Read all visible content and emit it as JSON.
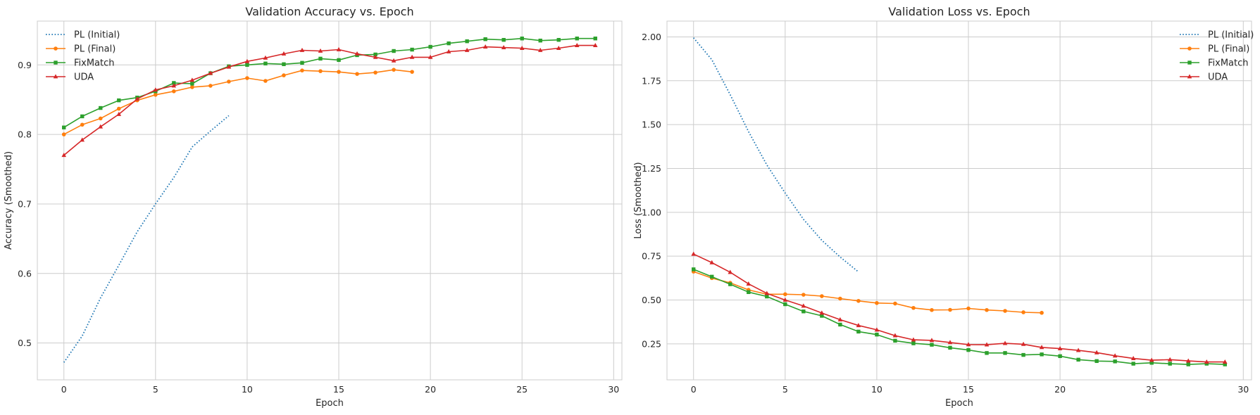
{
  "chart_data": [
    {
      "type": "line",
      "title": "Validation Accuracy vs. Epoch",
      "xlabel": "Epoch",
      "ylabel": "Accuracy (Smoothed)",
      "xlim": [
        -1.45,
        30.45
      ],
      "ylim": [
        0.447,
        0.963
      ],
      "xticks": [
        0,
        5,
        10,
        15,
        20,
        25,
        30
      ],
      "yticks": [
        0.5,
        0.6,
        0.7,
        0.8,
        0.9
      ],
      "ytick_labels": [
        "0.5",
        "0.6",
        "0.7",
        "0.8",
        "0.9"
      ],
      "grid": true,
      "legend": "top-left",
      "series": [
        {
          "name": "PL (Initial)",
          "color": "#1f77b4",
          "style": "dotted",
          "marker": "none",
          "x": [
            0,
            1,
            2,
            3,
            4,
            5,
            6,
            7,
            8,
            9
          ],
          "y": [
            0.472,
            0.51,
            0.565,
            0.612,
            0.66,
            0.7,
            0.738,
            0.782,
            0.805,
            0.827
          ]
        },
        {
          "name": "PL (Final)",
          "color": "#ff7f0e",
          "style": "solid",
          "marker": "circle",
          "x": [
            0,
            1,
            2,
            3,
            4,
            5,
            6,
            7,
            8,
            9,
            10,
            11,
            12,
            13,
            14,
            15,
            16,
            17,
            18,
            19
          ],
          "y": [
            0.8,
            0.814,
            0.823,
            0.837,
            0.849,
            0.857,
            0.862,
            0.868,
            0.87,
            0.876,
            0.881,
            0.877,
            0.885,
            0.892,
            0.891,
            0.89,
            0.887,
            0.889,
            0.893,
            0.89
          ]
        },
        {
          "name": "FixMatch",
          "color": "#2ca02c",
          "style": "solid",
          "marker": "square",
          "x": [
            0,
            1,
            2,
            3,
            4,
            5,
            6,
            7,
            8,
            9,
            10,
            11,
            12,
            13,
            14,
            15,
            16,
            17,
            18,
            19,
            20,
            21,
            22,
            23,
            24,
            25,
            26,
            27,
            28,
            29
          ],
          "y": [
            0.81,
            0.826,
            0.838,
            0.849,
            0.853,
            0.862,
            0.874,
            0.873,
            0.888,
            0.898,
            0.9,
            0.902,
            0.901,
            0.903,
            0.909,
            0.907,
            0.914,
            0.915,
            0.92,
            0.922,
            0.926,
            0.931,
            0.934,
            0.937,
            0.936,
            0.938,
            0.935,
            0.936,
            0.938,
            0.938
          ]
        },
        {
          "name": "UDA",
          "color": "#d62728",
          "style": "solid",
          "marker": "triangle",
          "x": [
            0,
            1,
            2,
            3,
            4,
            5,
            6,
            7,
            8,
            9,
            10,
            11,
            12,
            13,
            14,
            15,
            16,
            17,
            18,
            19,
            20,
            21,
            22,
            23,
            24,
            25,
            26,
            27,
            28,
            29
          ],
          "y": [
            0.77,
            0.792,
            0.811,
            0.829,
            0.851,
            0.864,
            0.87,
            0.878,
            0.888,
            0.897,
            0.905,
            0.91,
            0.916,
            0.921,
            0.92,
            0.922,
            0.916,
            0.911,
            0.906,
            0.911,
            0.911,
            0.919,
            0.921,
            0.926,
            0.925,
            0.924,
            0.921,
            0.924,
            0.928,
            0.928
          ]
        }
      ]
    },
    {
      "type": "line",
      "title": "Validation Loss vs. Epoch",
      "xlabel": "Epoch",
      "ylabel": "Loss (Smoothed)",
      "xlim": [
        -1.45,
        30.45
      ],
      "ylim": [
        0.045,
        2.09
      ],
      "xticks": [
        0,
        5,
        10,
        15,
        20,
        25,
        30
      ],
      "yticks": [
        0.25,
        0.5,
        0.75,
        1.0,
        1.25,
        1.5,
        1.75,
        2.0
      ],
      "ytick_labels": [
        "0.25",
        "0.50",
        "0.75",
        "1.00",
        "1.25",
        "1.50",
        "1.75",
        "2.00"
      ],
      "grid": true,
      "legend": "top-right",
      "series": [
        {
          "name": "PL (Initial)",
          "color": "#1f77b4",
          "style": "dotted",
          "marker": "none",
          "x": [
            0,
            1,
            2,
            3,
            4,
            5,
            6,
            7,
            8,
            9
          ],
          "y": [
            1.995,
            1.87,
            1.67,
            1.46,
            1.27,
            1.11,
            0.96,
            0.84,
            0.745,
            0.66
          ]
        },
        {
          "name": "PL (Final)",
          "color": "#ff7f0e",
          "style": "solid",
          "marker": "circle",
          "x": [
            0,
            1,
            2,
            3,
            4,
            5,
            6,
            7,
            8,
            9,
            10,
            11,
            12,
            13,
            14,
            15,
            16,
            17,
            18,
            19
          ],
          "y": [
            0.662,
            0.625,
            0.598,
            0.558,
            0.533,
            0.533,
            0.53,
            0.522,
            0.508,
            0.495,
            0.483,
            0.48,
            0.455,
            0.443,
            0.444,
            0.452,
            0.443,
            0.438,
            0.43,
            0.427
          ]
        },
        {
          "name": "FixMatch",
          "color": "#2ca02c",
          "style": "solid",
          "marker": "square",
          "x": [
            0,
            1,
            2,
            3,
            4,
            5,
            6,
            7,
            8,
            9,
            10,
            11,
            12,
            13,
            14,
            15,
            16,
            17,
            18,
            19,
            20,
            21,
            22,
            23,
            24,
            25,
            26,
            27,
            28,
            29
          ],
          "y": [
            0.675,
            0.633,
            0.59,
            0.545,
            0.52,
            0.476,
            0.435,
            0.41,
            0.36,
            0.32,
            0.303,
            0.268,
            0.253,
            0.245,
            0.228,
            0.215,
            0.198,
            0.198,
            0.187,
            0.19,
            0.18,
            0.16,
            0.152,
            0.15,
            0.137,
            0.142,
            0.137,
            0.133,
            0.137,
            0.133
          ]
        },
        {
          "name": "UDA",
          "color": "#d62728",
          "style": "solid",
          "marker": "triangle",
          "x": [
            0,
            1,
            2,
            3,
            4,
            5,
            6,
            7,
            8,
            9,
            10,
            11,
            12,
            13,
            14,
            15,
            16,
            17,
            18,
            19,
            20,
            21,
            22,
            23,
            24,
            25,
            26,
            27,
            28,
            29
          ],
          "y": [
            0.762,
            0.713,
            0.658,
            0.592,
            0.538,
            0.5,
            0.466,
            0.426,
            0.388,
            0.355,
            0.33,
            0.297,
            0.273,
            0.27,
            0.258,
            0.246,
            0.245,
            0.253,
            0.248,
            0.23,
            0.223,
            0.213,
            0.2,
            0.182,
            0.167,
            0.157,
            0.16,
            0.153,
            0.147,
            0.147
          ]
        }
      ]
    }
  ]
}
